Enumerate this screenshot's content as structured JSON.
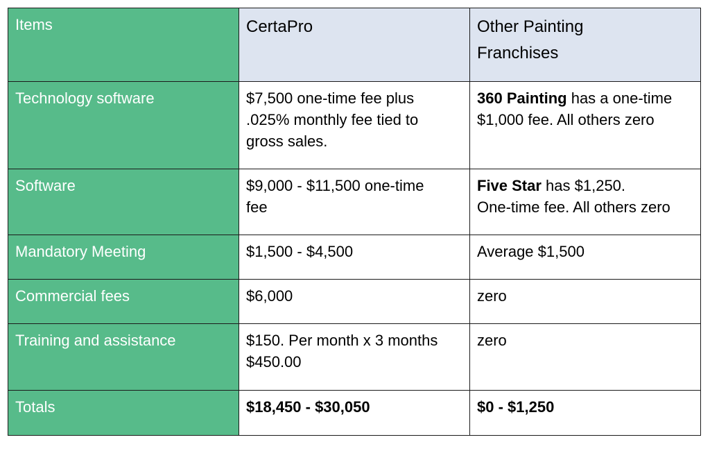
{
  "header": {
    "items": "Items",
    "col1": "CertaPro",
    "col2_line1": "Other Painting",
    "col2_line2": "Franchises"
  },
  "rows": [
    {
      "item": "Technology software",
      "certapro_lines": [
        "$7,500 one-time fee plus",
        ".025% monthly fee tied to",
        "gross sales."
      ],
      "other_bold": "360 Painting",
      "other_rest": " has a one-time",
      "other_line2": "$1,000 fee. All others zero"
    },
    {
      "item": "Software",
      "certapro_lines": [
        "$9,000 - $11,500 one-time",
        "fee"
      ],
      "other_bold": "Five Star",
      "other_rest": " has $1,250.",
      "other_line2": "One-time fee.  All others zero"
    },
    {
      "item": "Mandatory Meeting",
      "certapro": "$1,500 - $4,500",
      "other": "Average $1,500"
    },
    {
      "item": "Commercial fees",
      "certapro": "$6,000",
      "other": "zero"
    },
    {
      "item": "Training and assistance",
      "certapro_lines": [
        "$150. Per month x 3 months",
        "$450.00"
      ],
      "other": "zero"
    },
    {
      "item": "Totals",
      "certapro": "$18,450 - $30,050",
      "other": "$0 - $1,250"
    }
  ],
  "colors": {
    "items_column": "#57bb8a",
    "header_row": "#dde4f0",
    "border": "#1a1a1a"
  }
}
